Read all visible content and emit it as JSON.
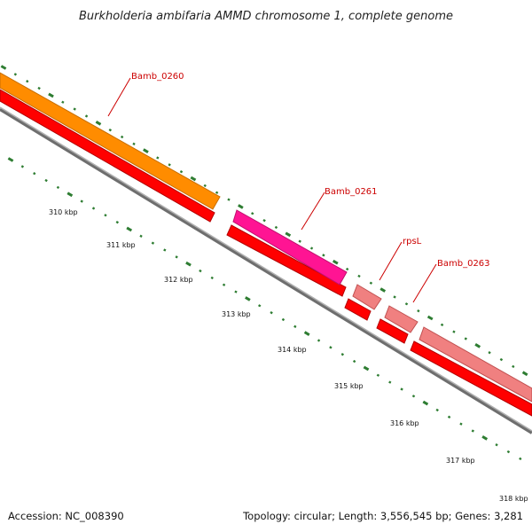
{
  "title": "Burkholderia ambifaria AMMD chromosome 1, complete genome",
  "footer": {
    "accession": "Accession: NC_008390",
    "summary": "Topology: circular; Length: 3,556,545 bp; Genes: 3,281"
  },
  "colors": {
    "backbone": "#888888",
    "cds": "#ff0000",
    "gene_orange": "#ff8c00",
    "gene_magenta": "#ff1493",
    "gene_pink": "#f08080",
    "tick": "#2e7d32",
    "label": "#cc0000"
  },
  "tick_labels": [
    "310 kbp",
    "311 kbp",
    "312 kbp",
    "313 kbp",
    "314 kbp",
    "315 kbp",
    "316 kbp",
    "317 kbp",
    "318 kbp"
  ],
  "genes": [
    {
      "name": "Bamb_0260",
      "color": "gene_orange"
    },
    {
      "name": "Bamb_0261",
      "color": "gene_magenta"
    },
    {
      "name": "rpsL",
      "color": "gene_pink"
    },
    {
      "name": "Bamb_0263",
      "color": "gene_pink"
    }
  ]
}
